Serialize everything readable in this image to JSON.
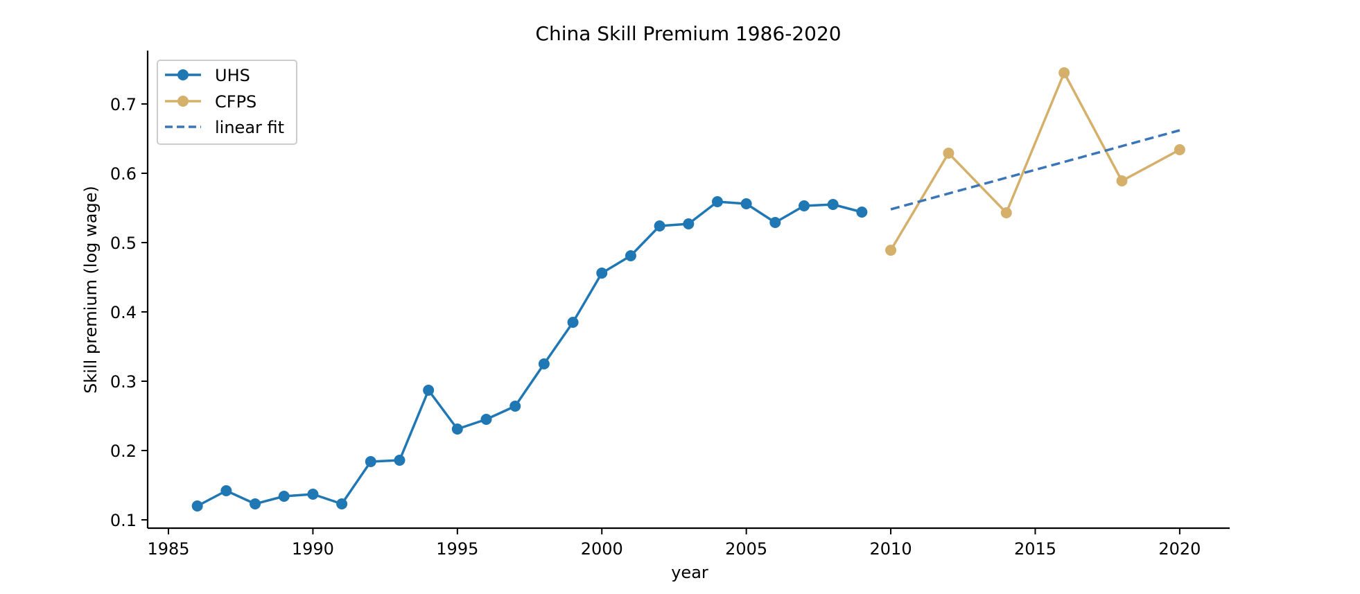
{
  "chart_data": {
    "type": "line",
    "title": "China Skill Premium 1986-2020",
    "xlabel": "year",
    "ylabel": "Skill premium (log wage)",
    "xlim": [
      1984.28,
      2021.73
    ],
    "ylim": [
      0.088,
      0.777
    ],
    "xticks": [
      1985,
      1990,
      1995,
      2000,
      2005,
      2010,
      2015,
      2020
    ],
    "xtick_labels": [
      "1985",
      "1990",
      "1995",
      "2000",
      "2005",
      "2010",
      "2015",
      "2020"
    ],
    "yticks": [
      0.1,
      0.2,
      0.3,
      0.4,
      0.5,
      0.6,
      0.7
    ],
    "ytick_labels": [
      "0.1",
      "0.2",
      "0.3",
      "0.4",
      "0.5",
      "0.6",
      "0.7"
    ],
    "grid": false,
    "legend_position": "upper left",
    "series": [
      {
        "name": "UHS",
        "style": "line-marker",
        "color": "#1f77b4",
        "x": [
          1986,
          1987,
          1988,
          1989,
          1990,
          1991,
          1992,
          1993,
          1994,
          1995,
          1996,
          1997,
          1998,
          1999,
          2000,
          2001,
          2002,
          2003,
          2004,
          2005,
          2006,
          2007,
          2008,
          2009
        ],
        "values": [
          0.12,
          0.142,
          0.123,
          0.134,
          0.137,
          0.123,
          0.184,
          0.186,
          0.287,
          0.231,
          0.245,
          0.264,
          0.325,
          0.385,
          0.456,
          0.481,
          0.524,
          0.527,
          0.559,
          0.556,
          0.529,
          0.553,
          0.555,
          0.544
        ]
      },
      {
        "name": "CFPS",
        "style": "line-marker",
        "color": "#d4b06a",
        "x": [
          2010,
          2012,
          2014,
          2016,
          2018,
          2020
        ],
        "values": [
          0.489,
          0.629,
          0.543,
          0.745,
          0.589,
          0.634
        ]
      },
      {
        "name": "linear fit",
        "style": "dashed",
        "color": "#3a75b8",
        "x": [
          2010,
          2020
        ],
        "values": [
          0.548,
          0.662
        ]
      }
    ]
  },
  "legend": {
    "items": [
      {
        "label": "UHS"
      },
      {
        "label": "CFPS"
      },
      {
        "label": "linear fit"
      }
    ]
  }
}
